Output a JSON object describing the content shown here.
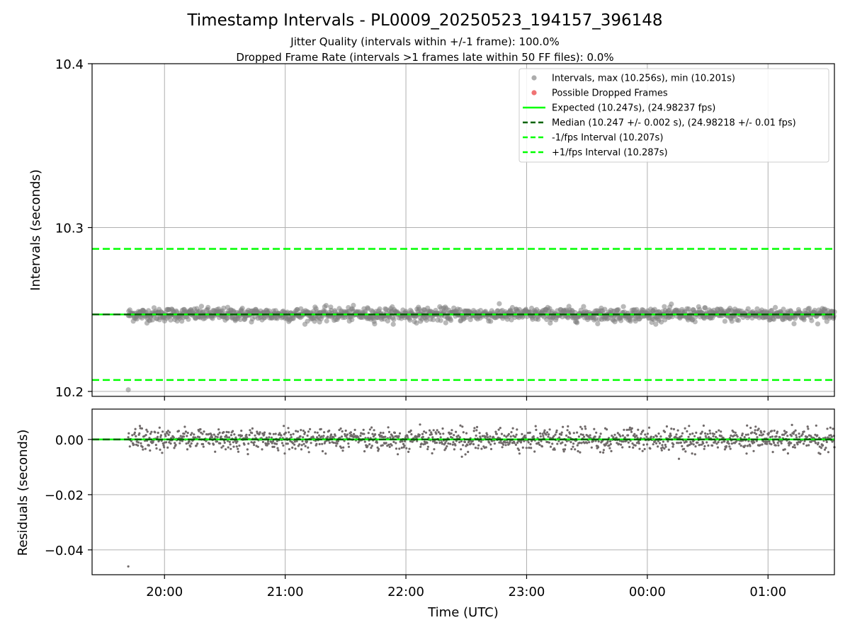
{
  "title": "Timestamp Intervals - PL0009_20250523_194157_396148",
  "subtitle_1": "Jitter Quality (intervals within +/-1 frame): 100.0%",
  "subtitle_2": "Dropped Frame Rate (intervals >1 frames late within 50 FF files): 0.0%",
  "colors": {
    "points": "#808080",
    "dropped": "#e8282a",
    "expected": "#00ff00",
    "median": "#006400",
    "grid": "#b0b0b0",
    "residual_points": "#706a6a"
  },
  "chart_data": [
    {
      "type": "scatter",
      "ylabel": "Intervals (seconds)",
      "ylim": [
        10.197,
        10.4
      ],
      "yticks": [
        10.2,
        10.3,
        10.4
      ],
      "ytick_labels": [
        "10.2",
        "10.3",
        "10.4"
      ],
      "xlim": [
        "19:24",
        "01:33"
      ],
      "grid": true,
      "legend_position": "top-right",
      "legend": [
        {
          "label": "Intervals, max (10.256s), min (10.201s)",
          "kind": "marker",
          "color": "#808080"
        },
        {
          "label": "Possible Dropped Frames",
          "kind": "marker",
          "color": "#e8282a"
        },
        {
          "label": "Expected (10.247s), (24.98237 fps)",
          "kind": "solid",
          "color": "#00ff00"
        },
        {
          "label": "Median (10.247 +/- 0.002 s), (24.98218 +/- 0.01 fps)",
          "kind": "dashed",
          "color": "#006400"
        },
        {
          "label": "-1/fps Interval (10.207s)",
          "kind": "dashed",
          "color": "#00ff00"
        },
        {
          "label": "+1/fps Interval (10.287s)",
          "kind": "dashed",
          "color": "#00ff00"
        }
      ],
      "series": [
        {
          "name": "Intervals, max (10.256s), min (10.201s)",
          "start": "19:42",
          "end": "01:33",
          "center": 10.247,
          "spread": 0.002,
          "max": 10.256,
          "min": 10.201,
          "outlier": {
            "x": "19:42",
            "y": 10.201
          }
        },
        {
          "name": "Expected (10.247s), (24.98237 fps)",
          "value": 10.247
        },
        {
          "name": "Median (10.247 +/- 0.002 s), (24.98218 +/- 0.01 fps)",
          "value": 10.247
        },
        {
          "name": "-1/fps Interval (10.207s)",
          "value": 10.207
        },
        {
          "name": "+1/fps Interval (10.287s)",
          "value": 10.287
        }
      ]
    },
    {
      "type": "scatter",
      "ylabel": "Residuals (seconds)",
      "xlabel": "Time (UTC)",
      "ylim": [
        -0.049,
        0.011
      ],
      "yticks": [
        0.0,
        -0.02,
        -0.04
      ],
      "ytick_labels": [
        "0.00",
        "−0.02",
        "−0.04"
      ],
      "xlim": [
        "19:24",
        "01:33"
      ],
      "xticks": [
        "20:00",
        "21:00",
        "22:00",
        "23:00",
        "00:00",
        "01:00"
      ],
      "xtick_labels": [
        "20:00",
        "21:00",
        "22:00",
        "23:00",
        "00:00",
        "01:00"
      ],
      "grid": true,
      "series": [
        {
          "name": "",
          "start": "19:42",
          "end": "01:33",
          "center": 0.0,
          "spread": 0.002,
          "max": 0.009,
          "min": -0.046,
          "outlier": {
            "x": "19:42",
            "y": -0.046
          }
        }
      ]
    }
  ]
}
